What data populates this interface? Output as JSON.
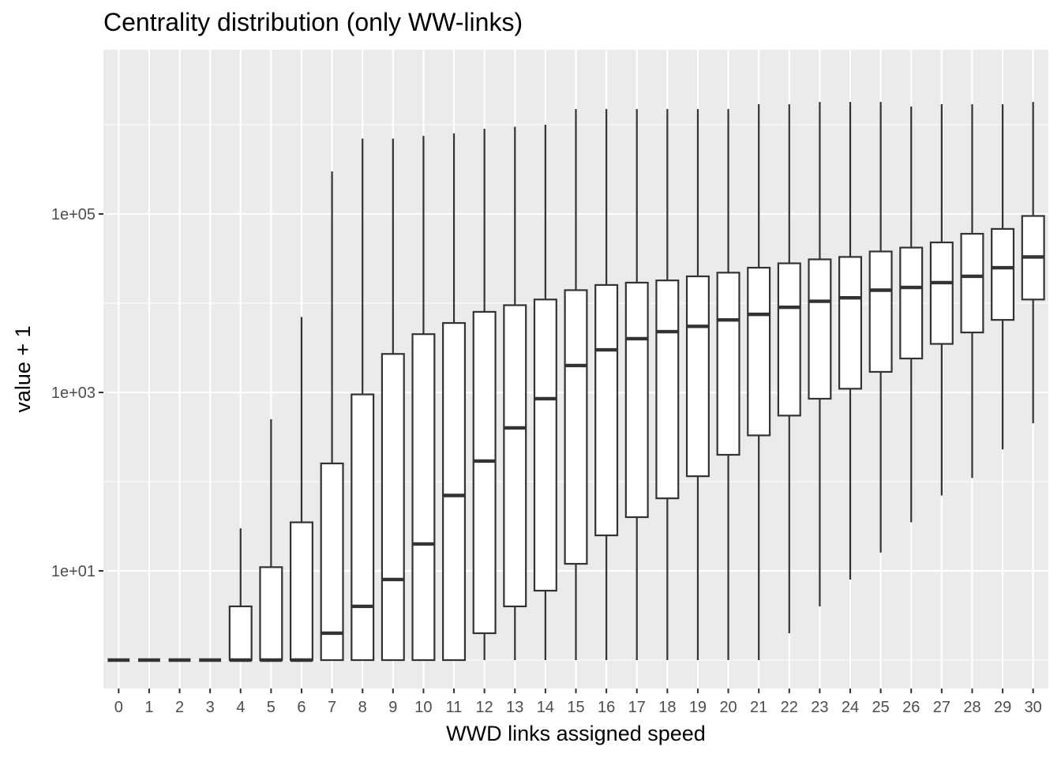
{
  "chart_data": {
    "type": "box",
    "title": "Centrality distribution (only WW-links)",
    "xlabel": "WWD links assigned speed",
    "ylabel": "value + 1",
    "y_scale": "log10",
    "ylim": [
      0.55,
      3000000
    ],
    "y_ticks": [
      10,
      1000,
      100000
    ],
    "y_tick_labels": [
      "1e+01",
      "1e+03",
      "1e+05"
    ],
    "grid": true,
    "categories": [
      "0",
      "1",
      "2",
      "3",
      "4",
      "5",
      "6",
      "7",
      "8",
      "9",
      "10",
      "11",
      "12",
      "13",
      "14",
      "15",
      "16",
      "17",
      "18",
      "19",
      "20",
      "21",
      "22",
      "23",
      "24",
      "25",
      "26",
      "27",
      "28",
      "29",
      "30"
    ],
    "boxes": [
      {
        "min": 1,
        "q1": 1,
        "median": 1,
        "q3": 1,
        "max": 1
      },
      {
        "min": 1,
        "q1": 1,
        "median": 1,
        "q3": 1,
        "max": 1
      },
      {
        "min": 1,
        "q1": 1,
        "median": 1,
        "q3": 1,
        "max": 1
      },
      {
        "min": 1,
        "q1": 1,
        "median": 1,
        "q3": 1,
        "max": 1
      },
      {
        "min": 1,
        "q1": 1,
        "median": 1,
        "q3": 4,
        "max": 30
      },
      {
        "min": 1,
        "q1": 1,
        "median": 1,
        "q3": 11,
        "max": 500
      },
      {
        "min": 1,
        "q1": 1,
        "median": 1,
        "q3": 35,
        "max": 7000
      },
      {
        "min": 1,
        "q1": 1,
        "median": 2,
        "q3": 160,
        "max": 300000
      },
      {
        "min": 1,
        "q1": 1,
        "median": 4,
        "q3": 950,
        "max": 700000
      },
      {
        "min": 1,
        "q1": 1,
        "median": 8,
        "q3": 2700,
        "max": 700000
      },
      {
        "min": 1,
        "q1": 1,
        "median": 20,
        "q3": 4500,
        "max": 750000
      },
      {
        "min": 1,
        "q1": 1,
        "median": 70,
        "q3": 6000,
        "max": 800000
      },
      {
        "min": 1,
        "q1": 2,
        "median": 170,
        "q3": 8000,
        "max": 900000
      },
      {
        "min": 1,
        "q1": 4,
        "median": 400,
        "q3": 9500,
        "max": 950000
      },
      {
        "min": 1,
        "q1": 6,
        "median": 850,
        "q3": 11000,
        "max": 1000000
      },
      {
        "min": 1,
        "q1": 12,
        "median": 2000,
        "q3": 14000,
        "max": 1500000
      },
      {
        "min": 1,
        "q1": 25,
        "median": 3000,
        "q3": 16000,
        "max": 1500000
      },
      {
        "min": 1,
        "q1": 40,
        "median": 4000,
        "q3": 17000,
        "max": 1500000
      },
      {
        "min": 1,
        "q1": 65,
        "median": 4800,
        "q3": 18000,
        "max": 1500000
      },
      {
        "min": 1,
        "q1": 115,
        "median": 5500,
        "q3": 20000,
        "max": 1500000
      },
      {
        "min": 1,
        "q1": 200,
        "median": 6500,
        "q3": 22000,
        "max": 1500000
      },
      {
        "min": 1,
        "q1": 330,
        "median": 7500,
        "q3": 25000,
        "max": 1700000
      },
      {
        "min": 2,
        "q1": 550,
        "median": 9000,
        "q3": 28000,
        "max": 1700000
      },
      {
        "min": 4,
        "q1": 850,
        "median": 10500,
        "q3": 31000,
        "max": 1800000
      },
      {
        "min": 8,
        "q1": 1100,
        "median": 11500,
        "q3": 33000,
        "max": 1800000
      },
      {
        "min": 16,
        "q1": 1700,
        "median": 14000,
        "q3": 38000,
        "max": 1800000
      },
      {
        "min": 35,
        "q1": 2400,
        "median": 15000,
        "q3": 42000,
        "max": 1600000
      },
      {
        "min": 70,
        "q1": 3500,
        "median": 17000,
        "q3": 48000,
        "max": 1700000
      },
      {
        "min": 110,
        "q1": 4700,
        "median": 20000,
        "q3": 60000,
        "max": 1700000
      },
      {
        "min": 230,
        "q1": 6500,
        "median": 25000,
        "q3": 68000,
        "max": 1700000
      },
      {
        "min": 450,
        "q1": 11000,
        "median": 33000,
        "q3": 95000,
        "max": 1800000
      }
    ]
  }
}
